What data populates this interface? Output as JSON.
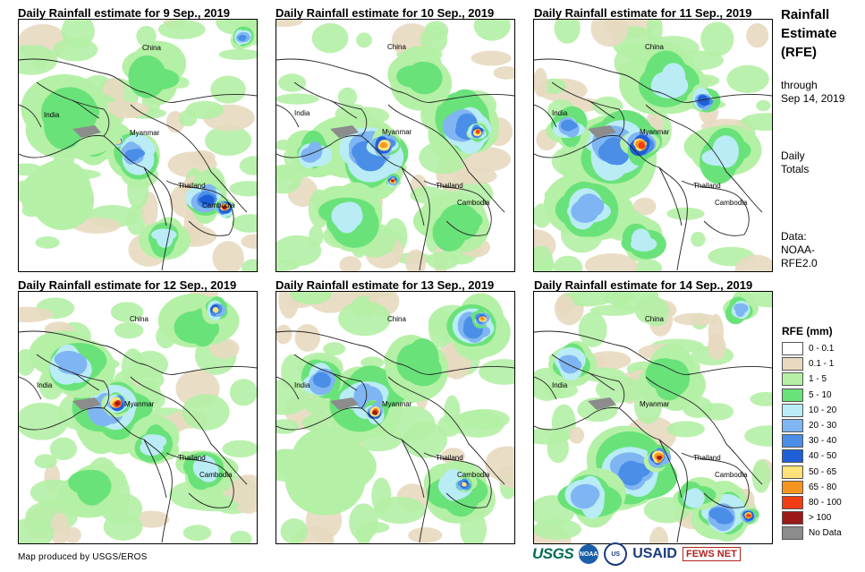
{
  "panels": [
    {
      "title": "Daily Rainfall estimate for 9 Sep., 2019"
    },
    {
      "title": "Daily Rainfall estimate for 10 Sep., 2019"
    },
    {
      "title": "Daily Rainfall estimate for 11 Sep., 2019"
    },
    {
      "title": "Daily Rainfall estimate for 12 Sep., 2019"
    },
    {
      "title": "Daily Rainfall estimate for 13 Sep., 2019"
    },
    {
      "title": "Daily Rainfall estimate for 14 Sep., 2019"
    }
  ],
  "country_labels": {
    "china": "China",
    "india": "India",
    "myanmar": "Myanmar",
    "thailand": "Thailand",
    "cambodia": "Cambodia"
  },
  "sidebar": {
    "title_lines": [
      "Rainfall",
      "Estimate",
      "(RFE)"
    ],
    "through": "through",
    "date": "Sep 14, 2019",
    "daily": "Daily",
    "totals": "Totals",
    "data_label": "Data:",
    "data_source_1": "NOAA-",
    "data_source_2": "RFE2.0"
  },
  "legend": {
    "title": "RFE (mm)",
    "items": [
      {
        "label": "0 - 0.1",
        "color": "#ffffff"
      },
      {
        "label": "0.1 - 1",
        "color": "#e8d9c0"
      },
      {
        "label": "1 - 5",
        "color": "#b4f0a5"
      },
      {
        "label": "5 - 10",
        "color": "#6ae27a"
      },
      {
        "label": "10 - 20",
        "color": "#b9ecf5"
      },
      {
        "label": "20 - 30",
        "color": "#7fb5f2"
      },
      {
        "label": "30 - 40",
        "color": "#4a8ee8"
      },
      {
        "label": "40 - 50",
        "color": "#1f5fd6"
      },
      {
        "label": "50 - 65",
        "color": "#fde27a"
      },
      {
        "label": "65 - 80",
        "color": "#f7961e"
      },
      {
        "label": "80 - 100",
        "color": "#f03c14"
      },
      {
        "label": "> 100",
        "color": "#9c1a1a"
      },
      {
        "label": "No Data",
        "color": "#8c8c8c"
      }
    ]
  },
  "credit": "Map produced by USGS/EROS",
  "logos": {
    "usgs": "USGS",
    "noaa": "NOAA",
    "usaid_seal": "US",
    "usaid": "USAID",
    "fews": "FEWS NET"
  }
}
